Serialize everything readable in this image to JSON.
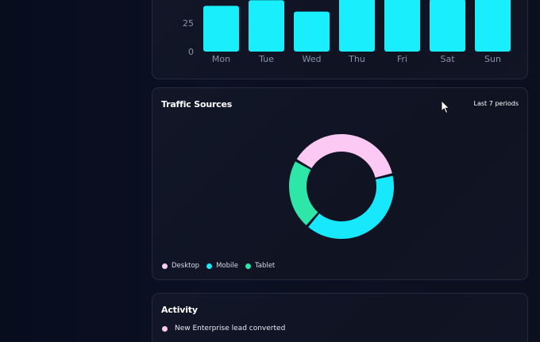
{
  "bar_chart": {
    "type": "bar",
    "categories": [
      "Mon",
      "Tue",
      "Wed",
      "Thu",
      "Fri",
      "Sat",
      "Sun"
    ],
    "values": [
      40,
      45,
      35,
      50,
      48,
      46,
      47
    ],
    "ytick_labels": [
      "25",
      "0"
    ],
    "ytick_values": [
      25,
      0
    ],
    "color": "#18eefc"
  },
  "traffic": {
    "title": "Traffic Sources",
    "period_label": "Last 7 periods",
    "chart_data": {
      "type": "pie",
      "categories": [
        "Desktop",
        "Mobile",
        "Tablet"
      ],
      "values": [
        38,
        40,
        22
      ],
      "colors": [
        "#fbc9f3",
        "#18e8fc",
        "#2ee6a8"
      ]
    },
    "legend": [
      {
        "label": "Desktop",
        "color": "#fbc9f3"
      },
      {
        "label": "Mobile",
        "color": "#18e8fc"
      },
      {
        "label": "Tablet",
        "color": "#2ee6a8"
      }
    ]
  },
  "activity": {
    "title": "Activity",
    "items": [
      {
        "text": "New Enterprise lead converted",
        "color": "#fbc9f3"
      }
    ]
  },
  "cursor": {
    "icon": "mouse-pointer-icon"
  }
}
